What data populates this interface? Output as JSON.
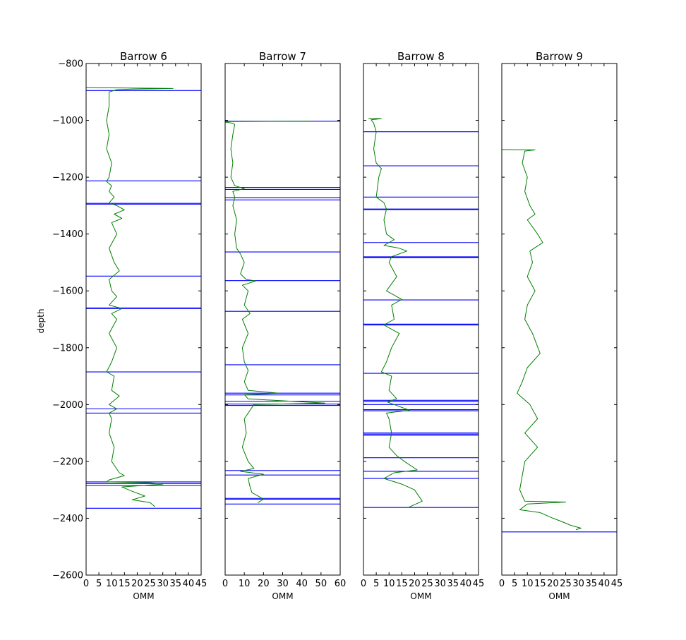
{
  "figure": {
    "ylabel": "depth",
    "xlabel": "OMM",
    "ylim": [
      -2600,
      -800
    ],
    "yticks": [
      -800,
      -1000,
      -1200,
      -1400,
      -1600,
      -1800,
      -2000,
      -2200,
      -2400,
      -2600
    ],
    "colors": {
      "curve": "#008000",
      "marker": "#0000ff",
      "axis": "#000000"
    }
  },
  "chart_data": [
    {
      "type": "line",
      "title": "Barrow 6",
      "xlabel": "OMM",
      "ylabel": "depth",
      "xlim": [
        0,
        45
      ],
      "xticks": [
        0,
        5,
        10,
        15,
        20,
        25,
        30,
        35,
        40,
        45
      ],
      "ylim": [
        -2600,
        -800
      ],
      "markers": [
        -895,
        -1213,
        -1292,
        -1295,
        -1548,
        -1660,
        -1662,
        -1885,
        -2015,
        -2030,
        -2272,
        -2278,
        -2285,
        -2365
      ],
      "series": [
        {
          "values": [
            [
              0,
              -885
            ],
            [
              25,
              -887
            ],
            [
              34,
              -888
            ],
            [
              18,
              -890
            ],
            [
              12,
              -892
            ],
            [
              9,
              -900
            ],
            [
              9,
              -950
            ],
            [
              8,
              -1000
            ],
            [
              9,
              -1050
            ],
            [
              8,
              -1100
            ],
            [
              10,
              -1150
            ],
            [
              9,
              -1200
            ],
            [
              8,
              -1215
            ],
            [
              10,
              -1230
            ],
            [
              9,
              -1250
            ],
            [
              11,
              -1270
            ],
            [
              9,
              -1290
            ],
            [
              12,
              -1300
            ],
            [
              15,
              -1315
            ],
            [
              11,
              -1330
            ],
            [
              14,
              -1345
            ],
            [
              10,
              -1360
            ],
            [
              12,
              -1400
            ],
            [
              9,
              -1450
            ],
            [
              11,
              -1500
            ],
            [
              13,
              -1530
            ],
            [
              9,
              -1560
            ],
            [
              10,
              -1600
            ],
            [
              12,
              -1620
            ],
            [
              9,
              -1650
            ],
            [
              14,
              -1662
            ],
            [
              10,
              -1680
            ],
            [
              12,
              -1700
            ],
            [
              9,
              -1750
            ],
            [
              12,
              -1800
            ],
            [
              10,
              -1850
            ],
            [
              8,
              -1885
            ],
            [
              11,
              -1900
            ],
            [
              10,
              -1950
            ],
            [
              13,
              -1970
            ],
            [
              9,
              -2000
            ],
            [
              12,
              -2015
            ],
            [
              9,
              -2030
            ],
            [
              10,
              -2050
            ],
            [
              9,
              -2100
            ],
            [
              11,
              -2150
            ],
            [
              10,
              -2200
            ],
            [
              13,
              -2240
            ],
            [
              15,
              -2250
            ],
            [
              9,
              -2265
            ],
            [
              8,
              -2272
            ],
            [
              25,
              -2275
            ],
            [
              30,
              -2280
            ],
            [
              14,
              -2290
            ],
            [
              18,
              -2305
            ],
            [
              23,
              -2322
            ],
            [
              18,
              -2335
            ],
            [
              25,
              -2345
            ],
            [
              27,
              -2360
            ]
          ]
        }
      ]
    },
    {
      "type": "line",
      "title": "Barrow 7",
      "xlabel": "OMM",
      "ylabel": "depth",
      "xlim": [
        0,
        60
      ],
      "xticks": [
        0,
        10,
        20,
        30,
        40,
        50,
        60
      ],
      "ylim": [
        -2600,
        -800
      ],
      "markers": [
        -1003,
        -1236,
        -1243,
        -1272,
        -1280,
        -1463,
        -1564,
        -1672,
        -1860,
        -1960,
        -1966,
        -1988,
        -1998,
        -2003,
        -2232,
        -2248,
        -2330,
        -2333,
        -2350
      ],
      "series": [
        {
          "values": [
            [
              45,
              -1003
            ],
            [
              2,
              -1004
            ],
            [
              0,
              -1006
            ],
            [
              4,
              -1010
            ],
            [
              5,
              -1015
            ],
            [
              4,
              -1050
            ],
            [
              3,
              -1100
            ],
            [
              4,
              -1150
            ],
            [
              3,
              -1200
            ],
            [
              5,
              -1230
            ],
            [
              10,
              -1240
            ],
            [
              4,
              -1250
            ],
            [
              5,
              -1270
            ],
            [
              4,
              -1300
            ],
            [
              6,
              -1350
            ],
            [
              5,
              -1400
            ],
            [
              6,
              -1450
            ],
            [
              8,
              -1470
            ],
            [
              10,
              -1500
            ],
            [
              8,
              -1540
            ],
            [
              11,
              -1560
            ],
            [
              16,
              -1565
            ],
            [
              9,
              -1580
            ],
            [
              12,
              -1600
            ],
            [
              10,
              -1650
            ],
            [
              13,
              -1680
            ],
            [
              9,
              -1700
            ],
            [
              12,
              -1750
            ],
            [
              9,
              -1800
            ],
            [
              10,
              -1850
            ],
            [
              12,
              -1880
            ],
            [
              10,
              -1920
            ],
            [
              12,
              -1950
            ],
            [
              28,
              -1960
            ],
            [
              10,
              -1965
            ],
            [
              12,
              -1980
            ],
            [
              52,
              -1995
            ],
            [
              15,
              -2000
            ],
            [
              10,
              -2050
            ],
            [
              11,
              -2100
            ],
            [
              9,
              -2150
            ],
            [
              12,
              -2200
            ],
            [
              15,
              -2225
            ],
            [
              8,
              -2235
            ],
            [
              20,
              -2245
            ],
            [
              12,
              -2260
            ],
            [
              13,
              -2290
            ],
            [
              14,
              -2310
            ],
            [
              18,
              -2325
            ],
            [
              20,
              -2333
            ],
            [
              17,
              -2345
            ]
          ]
        }
      ]
    },
    {
      "type": "line",
      "title": "Barrow 8",
      "xlabel": "OMM",
      "ylabel": "depth",
      "xlim": [
        0,
        45
      ],
      "xticks": [
        0,
        5,
        10,
        15,
        20,
        25,
        30,
        35,
        40,
        45
      ],
      "ylim": [
        -2600,
        -800
      ],
      "markers": [
        -1040,
        -1160,
        -1270,
        -1312,
        -1314,
        -1430,
        -1480,
        -1483,
        -1632,
        -1717,
        -1720,
        -1890,
        -1985,
        -1990,
        -2000,
        -2018,
        -2022,
        -2100,
        -2104,
        -2108,
        -2187,
        -2235,
        -2260,
        -2362
      ],
      "series": [
        {
          "values": [
            [
              2,
              -993
            ],
            [
              7,
              -994
            ],
            [
              3,
              -998
            ],
            [
              4,
              -1010
            ],
            [
              5,
              -1040
            ],
            [
              4,
              -1100
            ],
            [
              5,
              -1150
            ],
            [
              7,
              -1170
            ],
            [
              6,
              -1200
            ],
            [
              5,
              -1270
            ],
            [
              8,
              -1290
            ],
            [
              9,
              -1312
            ],
            [
              8,
              -1350
            ],
            [
              9,
              -1400
            ],
            [
              12,
              -1420
            ],
            [
              8,
              -1440
            ],
            [
              14,
              -1450
            ],
            [
              17,
              -1460
            ],
            [
              11,
              -1480
            ],
            [
              10,
              -1500
            ],
            [
              13,
              -1550
            ],
            [
              9,
              -1600
            ],
            [
              15,
              -1630
            ],
            [
              11,
              -1650
            ],
            [
              12,
              -1700
            ],
            [
              8,
              -1720
            ],
            [
              14,
              -1750
            ],
            [
              11,
              -1800
            ],
            [
              9,
              -1850
            ],
            [
              7,
              -1885
            ],
            [
              11,
              -1900
            ],
            [
              10,
              -1950
            ],
            [
              13,
              -1980
            ],
            [
              9,
              -1990
            ],
            [
              18,
              -2020
            ],
            [
              9,
              -2030
            ],
            [
              10,
              -2050
            ],
            [
              11,
              -2100
            ],
            [
              10,
              -2150
            ],
            [
              13,
              -2180
            ],
            [
              16,
              -2200
            ],
            [
              21,
              -2230
            ],
            [
              12,
              -2240
            ],
            [
              8,
              -2260
            ],
            [
              15,
              -2280
            ],
            [
              20,
              -2300
            ],
            [
              23,
              -2340
            ],
            [
              18,
              -2360
            ]
          ]
        }
      ]
    },
    {
      "type": "line",
      "title": "Barrow 9",
      "xlabel": "OMM",
      "ylabel": "depth",
      "xlim": [
        0,
        45
      ],
      "xticks": [
        0,
        5,
        10,
        15,
        20,
        25,
        30,
        35,
        40,
        45
      ],
      "ylim": [
        -2600,
        -800
      ],
      "markers": [
        -2448
      ],
      "series": [
        {
          "values": [
            [
              0,
              -1103
            ],
            [
              13,
              -1104
            ],
            [
              9,
              -1108
            ],
            [
              8,
              -1150
            ],
            [
              10,
              -1200
            ],
            [
              9,
              -1250
            ],
            [
              11,
              -1300
            ],
            [
              13,
              -1330
            ],
            [
              10,
              -1350
            ],
            [
              14,
              -1400
            ],
            [
              16,
              -1430
            ],
            [
              11,
              -1460
            ],
            [
              12,
              -1500
            ],
            [
              10,
              -1550
            ],
            [
              13,
              -1600
            ],
            [
              10,
              -1650
            ],
            [
              9,
              -1700
            ],
            [
              12,
              -1750
            ],
            [
              15,
              -1820
            ],
            [
              10,
              -1870
            ],
            [
              8,
              -1920
            ],
            [
              6,
              -1960
            ],
            [
              11,
              -2000
            ],
            [
              14,
              -2050
            ],
            [
              9,
              -2100
            ],
            [
              14,
              -2150
            ],
            [
              9,
              -2200
            ],
            [
              8,
              -2250
            ],
            [
              7,
              -2300
            ],
            [
              9,
              -2340
            ],
            [
              25,
              -2343
            ],
            [
              10,
              -2350
            ],
            [
              7,
              -2370
            ],
            [
              15,
              -2380
            ],
            [
              20,
              -2400
            ],
            [
              23,
              -2410
            ],
            [
              27,
              -2425
            ],
            [
              31,
              -2435
            ],
            [
              29,
              -2440
            ]
          ]
        }
      ]
    }
  ]
}
